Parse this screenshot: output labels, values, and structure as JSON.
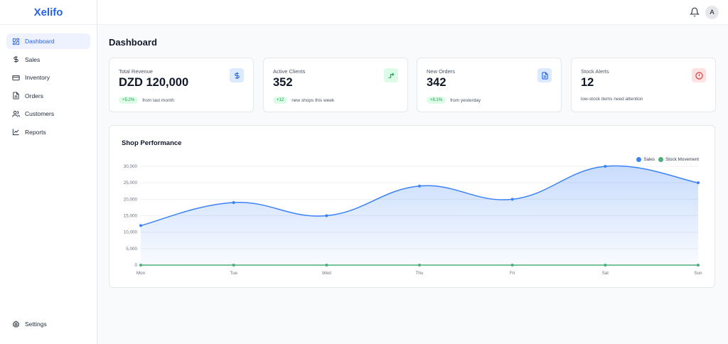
{
  "brand": {
    "name": "Xelifo",
    "accent": "#2563eb"
  },
  "sidebar": {
    "items": [
      {
        "label": "Dashboard",
        "icon": "dashboard-grid-icon",
        "active": true
      },
      {
        "label": "Sales",
        "icon": "dollar-icon"
      },
      {
        "label": "Inventory",
        "icon": "inventory-box-icon"
      },
      {
        "label": "Orders",
        "icon": "document-icon"
      },
      {
        "label": "Customers",
        "icon": "users-icon"
      },
      {
        "label": "Reports",
        "icon": "line-chart-icon"
      }
    ],
    "settings": {
      "label": "Settings",
      "icon": "gear-icon"
    }
  },
  "topbar": {
    "bell_icon": "bell-icon",
    "avatar_initial": "A"
  },
  "page": {
    "title": "Dashboard"
  },
  "cards": [
    {
      "label": "Total Revenue",
      "value": "DZD 120,000",
      "badge": "+5.2%",
      "sub": "from last month",
      "icon": "dollar-icon",
      "icon_bg": "#dbeafe",
      "icon_color": "#2563eb"
    },
    {
      "label": "Active Clients",
      "value": "352",
      "badge": "+12",
      "sub": "new shops this week",
      "icon": "trend-arrow-icon",
      "icon_bg": "#dcfce7",
      "icon_color": "#16a34a"
    },
    {
      "label": "New Orders",
      "value": "342",
      "badge": "+8.1%",
      "sub": "from yesterday",
      "icon": "document-icon",
      "icon_bg": "#dbeafe",
      "icon_color": "#2563eb"
    },
    {
      "label": "Stock Alerts",
      "value": "12",
      "badge": "",
      "sub": "low-stock items need attention",
      "icon": "alert-circle-icon",
      "icon_bg": "#fee2e2",
      "icon_color": "#dc2626"
    }
  ],
  "chart": {
    "title": "Shop Performance"
  },
  "chart_data": {
    "type": "line",
    "title": "Shop Performance",
    "categories": [
      "Mon",
      "Tue",
      "Wed",
      "Thu",
      "Fri",
      "Sat",
      "Sun"
    ],
    "series": [
      {
        "name": "Sales",
        "color": "#3b82f6",
        "values": [
          12000,
          19000,
          15000,
          24000,
          20000,
          30000,
          25000
        ]
      },
      {
        "name": "Stock Movement",
        "color": "#4caf7a",
        "values": [
          0,
          0,
          0,
          0,
          0,
          0,
          0
        ]
      }
    ],
    "yticks": [
      "0",
      "5,000",
      "10,000",
      "15,000",
      "20,000",
      "25,000",
      "30,000"
    ],
    "ylim": [
      0,
      30000
    ],
    "grid": true,
    "legend": "top-right"
  }
}
